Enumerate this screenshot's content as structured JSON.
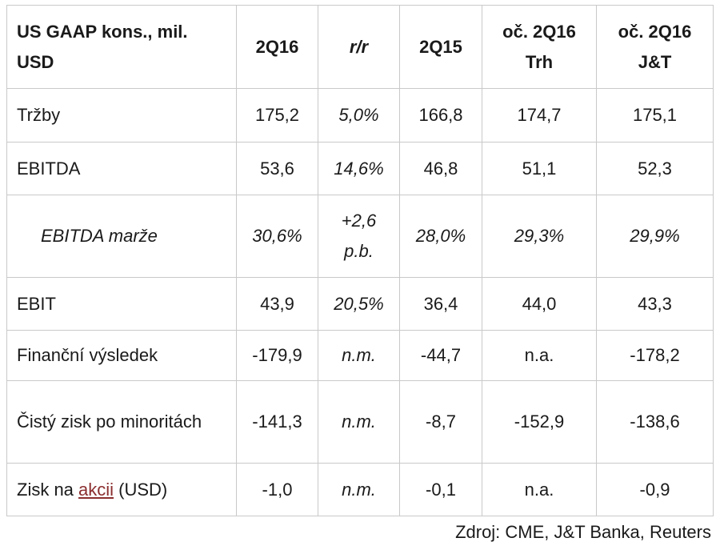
{
  "header": {
    "col0": "US GAAP kons., mil. USD",
    "col1": "2Q16",
    "col2": "r/r",
    "col3": "2Q15",
    "col4": "oč. 2Q16 Trh",
    "col5": "oč. 2Q16 J&T"
  },
  "rows": [
    {
      "label": "Tržby",
      "c1": "175,2",
      "c2": "5,0%",
      "c3": "166,8",
      "c4": "174,7",
      "c5": "175,1"
    },
    {
      "label": "EBITDA",
      "c1": "53,6",
      "c2": "14,6%",
      "c3": "46,8",
      "c4": "51,1",
      "c5": "52,3"
    },
    {
      "label": "EBITDA marže",
      "c1": "30,6%",
      "c2": "+2,6\np.b.",
      "c3": "28,0%",
      "c4": "29,3%",
      "c5": "29,9%"
    },
    {
      "label": "EBIT",
      "c1": "43,9",
      "c2": "20,5%",
      "c3": "36,4",
      "c4": "44,0",
      "c5": "43,3"
    },
    {
      "label": "Finanční výsledek",
      "c1": "-179,9",
      "c2": "n.m.",
      "c3": "-44,7",
      "c4": "n.a.",
      "c5": "-178,2"
    },
    {
      "label": "Čistý zisk po minoritách",
      "c1": "-141,3",
      "c2": "n.m.",
      "c3": "-8,7",
      "c4": "-152,9",
      "c5": "-138,6"
    },
    {
      "label_prefix": "Zisk na ",
      "label_link": "akcii",
      "label_suffix": " (USD)",
      "c1": "-1,0",
      "c2": "n.m.",
      "c3": "-0,1",
      "c4": "n.a.",
      "c5": "-0,9"
    }
  ],
  "source": "Zdroj: CME, J&T Banka, Reuters"
}
